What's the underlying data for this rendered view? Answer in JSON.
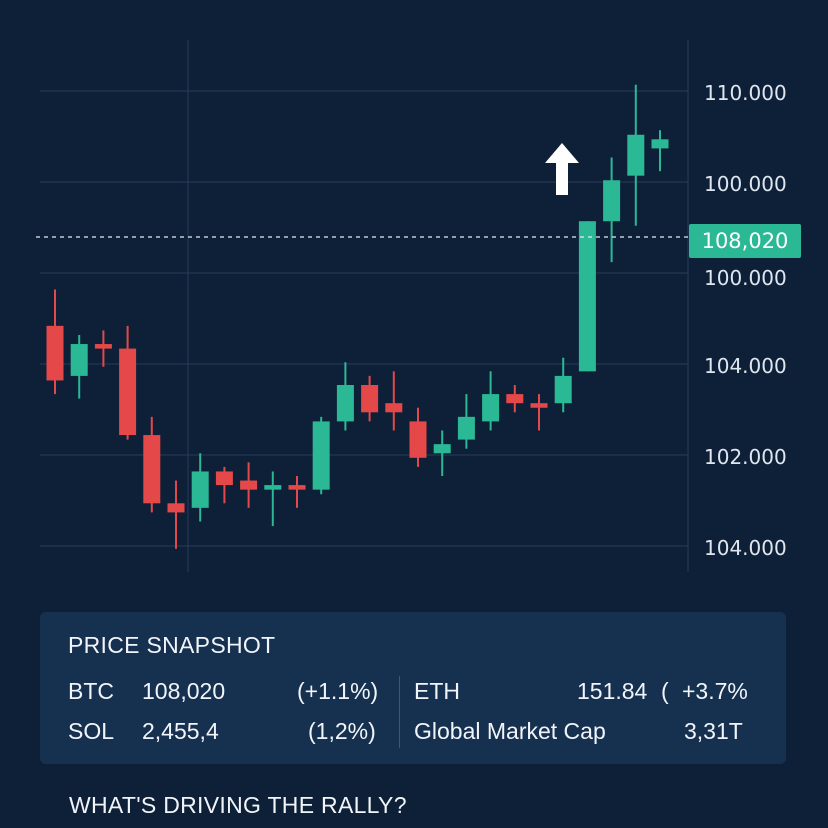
{
  "chart_data": {
    "type": "candlestick",
    "y_axis_labels": [
      "110.000",
      "100.000",
      "100.000",
      "104.000",
      "102.000",
      "104.000"
    ],
    "current_price_label": "108,020",
    "up_color": "#2bb895",
    "down_color": "#e44848",
    "tag_color": "#2bb895",
    "grid": true,
    "candles": [
      {
        "o": 105.3,
        "h": 106.1,
        "l": 103.8,
        "c": 104.1
      },
      {
        "o": 104.2,
        "h": 105.1,
        "l": 103.7,
        "c": 104.9
      },
      {
        "o": 104.9,
        "h": 105.2,
        "l": 104.4,
        "c": 104.8
      },
      {
        "o": 104.8,
        "h": 105.3,
        "l": 102.8,
        "c": 102.9
      },
      {
        "o": 102.9,
        "h": 103.3,
        "l": 101.2,
        "c": 101.4
      },
      {
        "o": 101.4,
        "h": 101.9,
        "l": 100.4,
        "c": 101.2
      },
      {
        "o": 101.3,
        "h": 102.5,
        "l": 101.0,
        "c": 102.1
      },
      {
        "o": 102.1,
        "h": 102.2,
        "l": 101.4,
        "c": 101.8
      },
      {
        "o": 101.9,
        "h": 102.3,
        "l": 101.3,
        "c": 101.7
      },
      {
        "o": 101.7,
        "h": 102.1,
        "l": 100.9,
        "c": 101.8
      },
      {
        "o": 101.8,
        "h": 102.0,
        "l": 101.3,
        "c": 101.7
      },
      {
        "o": 101.7,
        "h": 103.3,
        "l": 101.6,
        "c": 103.2
      },
      {
        "o": 103.2,
        "h": 104.5,
        "l": 103.0,
        "c": 104.0
      },
      {
        "o": 104.0,
        "h": 104.2,
        "l": 103.2,
        "c": 103.4
      },
      {
        "o": 103.6,
        "h": 104.3,
        "l": 103.0,
        "c": 103.4
      },
      {
        "o": 103.2,
        "h": 103.5,
        "l": 102.2,
        "c": 102.4
      },
      {
        "o": 102.5,
        "h": 103.0,
        "l": 102.0,
        "c": 102.7
      },
      {
        "o": 102.8,
        "h": 103.8,
        "l": 102.6,
        "c": 103.3
      },
      {
        "o": 103.2,
        "h": 104.3,
        "l": 103.0,
        "c": 103.8
      },
      {
        "o": 103.8,
        "h": 104.0,
        "l": 103.4,
        "c": 103.6
      },
      {
        "o": 103.6,
        "h": 103.8,
        "l": 103.0,
        "c": 103.5
      },
      {
        "o": 103.6,
        "h": 104.6,
        "l": 103.4,
        "c": 104.2
      },
      {
        "o": 104.3,
        "h": 107.6,
        "l": 104.3,
        "c": 107.6
      },
      {
        "o": 107.6,
        "h": 109.0,
        "l": 106.7,
        "c": 108.5
      },
      {
        "o": 108.6,
        "h": 110.6,
        "l": 107.5,
        "c": 109.5
      },
      {
        "o": 109.2,
        "h": 109.6,
        "l": 108.7,
        "c": 109.4
      }
    ]
  },
  "snapshot": {
    "title": "PRICE SNAPSHOT",
    "btc_symbol": "BTC",
    "btc_price": "108,020",
    "btc_change": "(+1.1%)",
    "sol_symbol": "SOL",
    "sol_price": "2,455,4",
    "sol_change": "(1,2%)",
    "eth_symbol": "ETH",
    "eth_price": "151.84",
    "eth_paren": "(",
    "eth_change": "+3.7%",
    "cap_label": "Global Market Cap",
    "cap_value": "3,31T"
  },
  "section_heading": "WHAT'S DRIVING THE RALLY?"
}
